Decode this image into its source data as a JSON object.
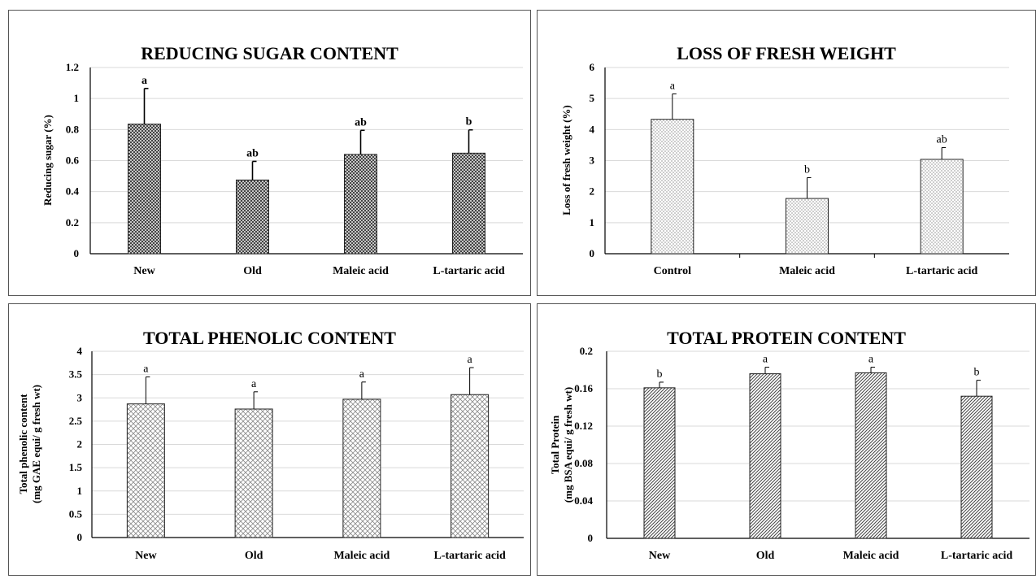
{
  "chart_data": [
    {
      "type": "bar",
      "title": "REDUCING SUGAR CONTENT",
      "ylabel": [
        "Reducing sugar (%)"
      ],
      "categories": [
        "New",
        "Old",
        "Maleic acid",
        "L-tartaric acid"
      ],
      "values": [
        0.835,
        0.475,
        0.64,
        0.648
      ],
      "errors": [
        0.23,
        0.12,
        0.155,
        0.15
      ],
      "letters": [
        "a",
        "ab",
        "ab",
        "b"
      ],
      "ylim": [
        0,
        1.2
      ],
      "yticks": [
        "0",
        "0.2",
        "0.4",
        "0.6",
        "0.8",
        "1",
        "1.2"
      ],
      "pattern": "crosshatch",
      "grid": true
    },
    {
      "type": "bar",
      "title": "LOSS OF FRESH WEIGHT",
      "ylabel": [
        "Loss of fresh weight (%)"
      ],
      "categories": [
        "Control",
        "Maleic acid",
        "L-tartaric acid"
      ],
      "values": [
        4.33,
        1.78,
        3.04
      ],
      "errors": [
        0.82,
        0.67,
        0.38
      ],
      "letters": [
        "a",
        "b",
        "ab"
      ],
      "ylim": [
        0,
        6
      ],
      "yticks": [
        "0",
        "1",
        "2",
        "3",
        "4",
        "5",
        "6"
      ],
      "pattern": "dots",
      "grid": true
    },
    {
      "type": "bar",
      "title": "TOTAL PHENOLIC CONTENT",
      "ylabel": [
        "Total phenolic content",
        "(mg GAE equi/ g fresh wt)"
      ],
      "categories": [
        "New",
        "Old",
        "Maleic acid",
        "L-tartaric acid"
      ],
      "values": [
        2.87,
        2.76,
        2.97,
        3.07
      ],
      "errors": [
        0.58,
        0.37,
        0.37,
        0.58
      ],
      "letters": [
        "a",
        "a",
        "a",
        "a"
      ],
      "ylim": [
        0,
        4
      ],
      "yticks": [
        "0",
        "0.5",
        "1",
        "1.5",
        "2",
        "2.5",
        "3",
        "3.5",
        "4"
      ],
      "pattern": "weave",
      "grid": true
    },
    {
      "type": "bar",
      "title": "TOTAL PROTEIN CONTENT",
      "ylabel": [
        "Total Protein",
        "(mg BSA equi/ g fresh wt)"
      ],
      "categories": [
        "New",
        "Old",
        "Maleic acid",
        "L-tartaric acid"
      ],
      "values": [
        0.161,
        0.176,
        0.177,
        0.152
      ],
      "errors": [
        0.006,
        0.007,
        0.006,
        0.017
      ],
      "letters": [
        "b",
        "a",
        "a",
        "b"
      ],
      "ylim": [
        0,
        0.2
      ],
      "yticks": [
        "0",
        "0.04",
        "0.08",
        "0.12",
        "0.16",
        "0.2"
      ],
      "pattern": "diagonal",
      "grid": true
    }
  ]
}
